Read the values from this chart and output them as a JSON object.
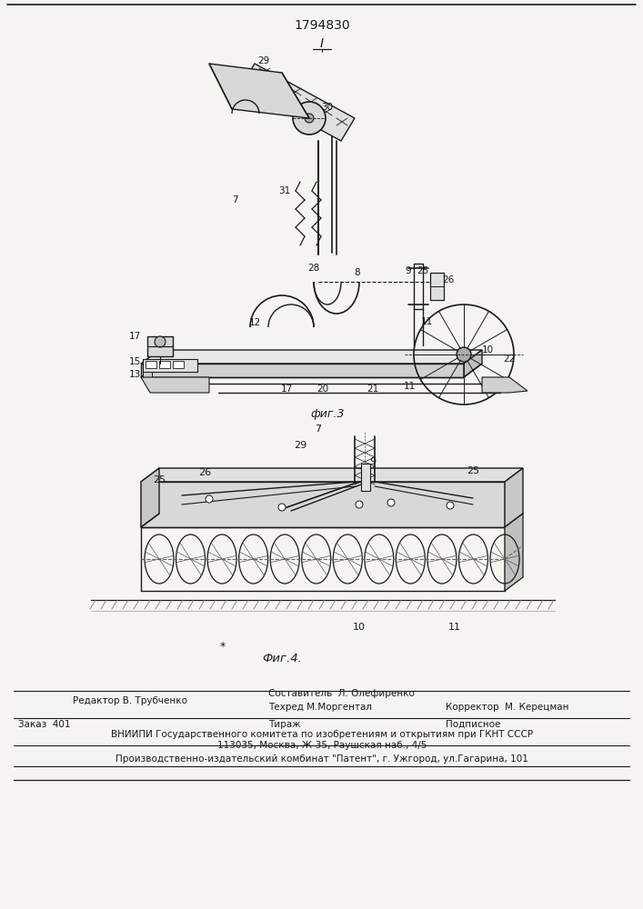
{
  "patent_number": "1794830",
  "fig3_label": "фиг.3",
  "fig4_label": "Фиг.4.",
  "top_label": "I",
  "bg_color": "#f5f4f1",
  "line_color": "#1a1a1a",
  "editor_line": "Редактор В. Трубченко",
  "composer_line1": "Составитель  Л. Олефиренко",
  "composer_line2": "Техред М.Моргентал",
  "corrector_line": "Корректор  М. Керецман",
  "order_text": "Заказ  401",
  "tirazh_text": "Тираж",
  "podpisnoe_text": "Подписное",
  "vniiipi_line": "ВНИИПИ Государственного комитета по изобретениям и открытиям при ГКНТ СССР",
  "address_line": "113035, Москва, Ж-35, Раушская наб., 4/5",
  "production_line": "Производственно-издательский комбинат \"Патент\", г. Ужгород, ул.Гагарина, 101"
}
